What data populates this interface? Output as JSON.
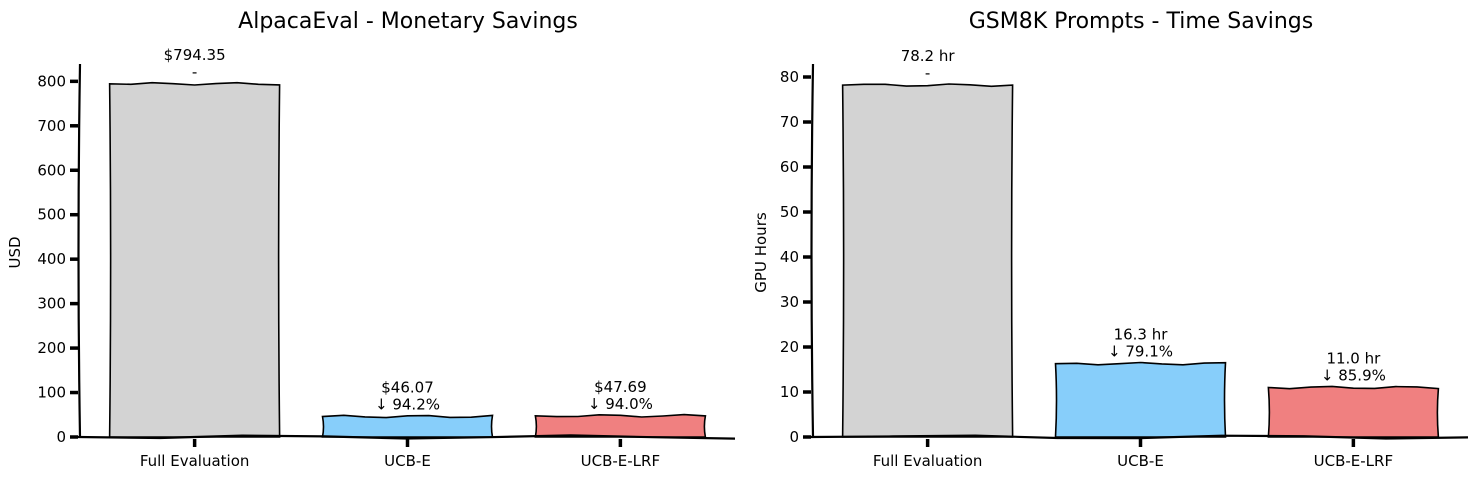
{
  "chart_data": [
    {
      "type": "bar",
      "title": "AlpacaEval - Monetary Savings",
      "xlabel": "",
      "ylabel": "USD",
      "categories": [
        "Full Evaluation",
        "UCB-E",
        "UCB-E-LRF"
      ],
      "values": [
        794.35,
        46.07,
        47.69
      ],
      "value_labels": [
        "$794.35",
        "$46.07",
        "$47.69"
      ],
      "savings_labels": [
        "-",
        "↓ 94.2%",
        "↓ 94.0%"
      ],
      "colors": [
        "#d3d3d3",
        "#87cefa",
        "#f08080"
      ],
      "ylim": [
        0,
        830
      ],
      "yticks": [
        0,
        100,
        200,
        300,
        400,
        500,
        600,
        700,
        800
      ],
      "grid": false,
      "legend": "none"
    },
    {
      "type": "bar",
      "title": "GSM8K Prompts - Time Savings",
      "xlabel": "",
      "ylabel": "GPU Hours",
      "categories": [
        "Full Evaluation",
        "UCB-E",
        "UCB-E-LRF"
      ],
      "values": [
        78.2,
        16.3,
        11.0
      ],
      "value_labels": [
        "78.2 hr",
        "16.3 hr",
        "11.0 hr"
      ],
      "savings_labels": [
        "-",
        "↓ 79.1%",
        "↓ 85.9%"
      ],
      "colors": [
        "#d3d3d3",
        "#87cefa",
        "#f08080"
      ],
      "ylim": [
        0,
        82
      ],
      "yticks": [
        0,
        10,
        20,
        30,
        40,
        50,
        60,
        70,
        80
      ],
      "grid": false,
      "legend": "none"
    }
  ]
}
